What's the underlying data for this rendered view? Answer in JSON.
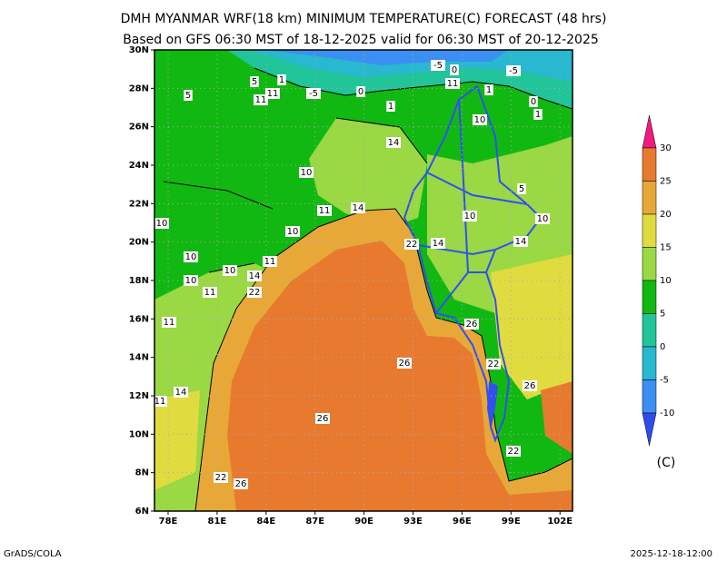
{
  "title": "DMH MYANMAR WRF(18 km) MINIMUM TEMPERATURE(C) FORECAST (48 hrs)",
  "subtitle": "Based on GFS 06:30 MST of 18-12-2025 valid for 06:30 MST of 20-12-2025",
  "map": {
    "lat_ticks": [
      "30N",
      "28N",
      "26N",
      "24N",
      "22N",
      "20N",
      "18N",
      "16N",
      "14N",
      "12N",
      "10N",
      "8N",
      "6N"
    ],
    "lon_ticks": [
      "78E",
      "81E",
      "84E",
      "87E",
      "90E",
      "93E",
      "96E",
      "99E",
      "102E"
    ],
    "contour_labels": [
      "5",
      "5",
      "1",
      "11",
      "11",
      "-5",
      "0",
      "-5",
      "0",
      "-5",
      "11",
      "1",
      "0",
      "1",
      "1",
      "10",
      "14",
      "10",
      "5",
      "11",
      "14",
      "10",
      "10",
      "10",
      "10",
      "22",
      "14",
      "14",
      "10",
      "11",
      "10",
      "14",
      "10",
      "11",
      "22",
      "11",
      "26",
      "26",
      "22",
      "26",
      "14",
      "11",
      "26",
      "22",
      "22",
      "26"
    ]
  },
  "colorbar": {
    "ticks": [
      30,
      25,
      20,
      15,
      10,
      5,
      0,
      -5,
      -10
    ],
    "colors": [
      "#f01a80",
      "#e87a30",
      "#e8a838",
      "#e0dc40",
      "#9ad844",
      "#12b812",
      "#22c49a",
      "#28b8d0",
      "#3c8ff2",
      "#2e4cf0"
    ],
    "unit": "(C)"
  },
  "footer": {
    "left": "GrADS/COLA",
    "right": "2025-12-18-12:00"
  }
}
